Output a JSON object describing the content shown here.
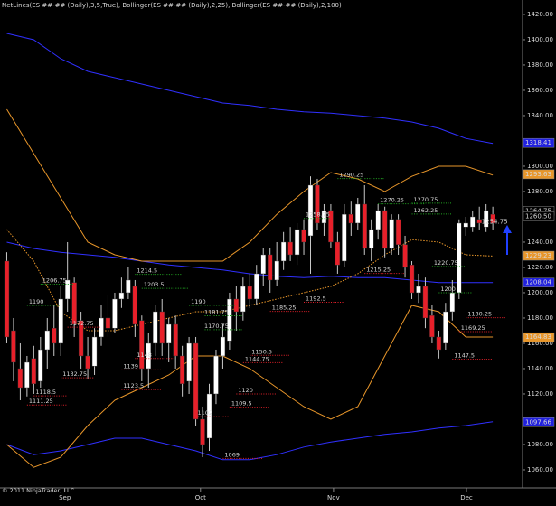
{
  "chart_data": {
    "type": "candlestick",
    "title": "NetLines(ES ##-## (Daily),3,5,True), Bollinger(ES ##-## (Daily),2,25), Bollinger(ES ##-## (Daily),2,100)",
    "footer": "© 2011 NinjaTrader, LLC",
    "up_color": "#ffffff",
    "down_color": "#e8202a",
    "x": [
      0,
      1,
      2,
      3,
      4,
      5,
      6,
      7,
      8,
      9,
      10,
      11,
      12,
      13,
      14,
      15,
      16,
      17,
      18,
      19,
      20,
      21,
      22,
      23,
      24,
      25,
      26,
      27,
      28,
      29,
      30,
      31,
      32,
      33,
      34,
      35,
      36,
      37,
      38,
      39,
      40,
      41,
      42,
      43,
      44,
      45,
      46,
      47,
      48,
      49,
      50,
      51,
      52,
      53,
      54,
      55,
      56,
      57,
      58,
      59,
      60,
      61,
      62,
      63,
      64,
      65,
      66,
      67,
      68,
      69,
      70,
      71,
      72
    ],
    "open": [
      1225,
      1170,
      1140,
      1125,
      1148,
      1130,
      1155,
      1172,
      1160,
      1195,
      1208,
      1178,
      1150,
      1142,
      1165,
      1180,
      1172,
      1195,
      1200,
      1205,
      1178,
      1140,
      1160,
      1185,
      1160,
      1175,
      1150,
      1130,
      1160,
      1100,
      1085,
      1120,
      1150,
      1162,
      1195,
      1185,
      1205,
      1195,
      1215,
      1230,
      1210,
      1225,
      1240,
      1230,
      1250,
      1245,
      1285,
      1255,
      1265,
      1240,
      1225,
      1262,
      1255,
      1270,
      1235,
      1250,
      1265,
      1235,
      1258,
      1238,
      1222,
      1200,
      1205,
      1182,
      1165,
      1160,
      1185,
      1200,
      1252,
      1252,
      1258,
      1252,
      1262
    ],
    "high": [
      1232,
      1180,
      1160,
      1150,
      1158,
      1165,
      1180,
      1190,
      1205,
      1240,
      1212,
      1185,
      1165,
      1172,
      1190,
      1198,
      1200,
      1212,
      1220,
      1210,
      1182,
      1168,
      1190,
      1195,
      1180,
      1182,
      1158,
      1165,
      1165,
      1110,
      1128,
      1155,
      1175,
      1200,
      1205,
      1212,
      1215,
      1222,
      1235,
      1235,
      1240,
      1248,
      1252,
      1255,
      1258,
      1292,
      1290,
      1270,
      1270,
      1248,
      1270,
      1272,
      1275,
      1285,
      1258,
      1270,
      1268,
      1262,
      1262,
      1245,
      1225,
      1215,
      1212,
      1190,
      1170,
      1192,
      1210,
      1258,
      1260,
      1265,
      1268,
      1270,
      1268
    ],
    "low": [
      1160,
      1130,
      1115,
      1118,
      1120,
      1125,
      1140,
      1150,
      1150,
      1185,
      1165,
      1140,
      1132,
      1135,
      1158,
      1165,
      1168,
      1188,
      1195,
      1165,
      1130,
      1125,
      1150,
      1150,
      1145,
      1140,
      1118,
      1120,
      1095,
      1070,
      1075,
      1112,
      1140,
      1155,
      1170,
      1178,
      1188,
      1190,
      1205,
      1200,
      1205,
      1218,
      1225,
      1222,
      1230,
      1215,
      1250,
      1245,
      1235,
      1215,
      1220,
      1245,
      1250,
      1230,
      1225,
      1242,
      1228,
      1230,
      1230,
      1212,
      1195,
      1192,
      1172,
      1160,
      1148,
      1155,
      1178,
      1195,
      1245,
      1248,
      1250,
      1248,
      1250
    ],
    "close": [
      1165,
      1145,
      1125,
      1145,
      1128,
      1155,
      1170,
      1160,
      1195,
      1210,
      1175,
      1150,
      1140,
      1165,
      1180,
      1172,
      1195,
      1200,
      1210,
      1175,
      1140,
      1160,
      1185,
      1160,
      1175,
      1150,
      1128,
      1160,
      1100,
      1080,
      1120,
      1150,
      1165,
      1195,
      1185,
      1205,
      1195,
      1215,
      1230,
      1210,
      1225,
      1240,
      1230,
      1250,
      1240,
      1285,
      1255,
      1265,
      1240,
      1222,
      1262,
      1255,
      1270,
      1235,
      1250,
      1265,
      1235,
      1258,
      1238,
      1220,
      1200,
      1205,
      1180,
      1165,
      1155,
      1185,
      1200,
      1255,
      1255,
      1260,
      1255,
      1265,
      1255
    ],
    "bands": [
      {
        "color": "#3030ff",
        "style": "solid",
        "x": [
          0,
          4,
          8,
          12,
          16,
          20,
          24,
          28,
          32,
          36,
          40,
          44,
          48,
          52,
          56,
          60,
          64,
          68,
          72
        ],
        "values": [
          1405,
          1400,
          1385,
          1375,
          1370,
          1365,
          1360,
          1355,
          1350,
          1348,
          1345,
          1343,
          1342,
          1340,
          1338,
          1335,
          1330,
          1322,
          1318
        ]
      },
      {
        "color": "#3030ff",
        "style": "solid",
        "x": [
          0,
          4,
          8,
          12,
          16,
          20,
          24,
          28,
          32,
          36,
          40,
          44,
          48,
          52,
          56,
          60,
          64,
          68,
          72
        ],
        "values": [
          1240,
          1235,
          1232,
          1230,
          1228,
          1225,
          1222,
          1220,
          1218,
          1215,
          1213,
          1212,
          1213,
          1212,
          1212,
          1210,
          1208,
          1208,
          1208
        ]
      },
      {
        "color": "#3030ff",
        "style": "solid",
        "x": [
          0,
          4,
          8,
          12,
          16,
          20,
          24,
          28,
          32,
          36,
          40,
          44,
          48,
          52,
          56,
          60,
          64,
          68,
          72
        ],
        "values": [
          1080,
          1072,
          1075,
          1080,
          1085,
          1085,
          1080,
          1075,
          1068,
          1068,
          1072,
          1078,
          1082,
          1085,
          1088,
          1090,
          1093,
          1095,
          1098
        ]
      },
      {
        "color": "#e8962a",
        "style": "solid",
        "x": [
          0,
          4,
          8,
          12,
          16,
          20,
          24,
          28,
          32,
          36,
          40,
          44,
          48,
          52,
          56,
          60,
          64,
          68,
          72
        ],
        "values": [
          1345,
          1310,
          1275,
          1240,
          1230,
          1225,
          1225,
          1225,
          1225,
          1240,
          1262,
          1280,
          1295,
          1290,
          1280,
          1292,
          1300,
          1300,
          1293
        ]
      },
      {
        "color": "#e8962a",
        "style": "dotted",
        "x": [
          0,
          4,
          8,
          12,
          16,
          20,
          24,
          28,
          32,
          36,
          40,
          44,
          48,
          52,
          56,
          60,
          64,
          68,
          72
        ],
        "values": [
          1250,
          1225,
          1185,
          1170,
          1170,
          1175,
          1180,
          1185,
          1185,
          1190,
          1195,
          1200,
          1205,
          1215,
          1230,
          1242,
          1240,
          1230,
          1229
        ]
      },
      {
        "color": "#e8962a",
        "style": "solid",
        "x": [
          0,
          4,
          8,
          12,
          16,
          20,
          24,
          28,
          32,
          36,
          40,
          44,
          48,
          52,
          56,
          60,
          64,
          68,
          72
        ],
        "values": [
          1080,
          1062,
          1070,
          1095,
          1115,
          1125,
          1135,
          1150,
          1150,
          1140,
          1125,
          1110,
          1100,
          1110,
          1150,
          1190,
          1185,
          1165,
          1165
        ]
      }
    ],
    "levels": [
      {
        "color": "#22a822",
        "items": [
          {
            "value": 1206.75,
            "x": [
              5,
              10
            ]
          },
          {
            "value": 1190,
            "x": [
              3,
              8
            ]
          },
          {
            "value": 1214.5,
            "x": [
              19,
              26
            ]
          },
          {
            "value": 1203.5,
            "x": [
              20,
              27
            ]
          },
          {
            "value": 1190,
            "x": [
              27,
              34
            ]
          },
          {
            "value": 1181.75,
            "x": [
              29,
              35
            ]
          },
          {
            "value": 1170.75,
            "x": [
              29,
              35
            ]
          },
          {
            "value": 1258.75,
            "x": [
              44,
              48
            ]
          },
          {
            "value": 1290.25,
            "x": [
              49,
              56
            ]
          },
          {
            "value": 1270.25,
            "x": [
              55,
              62
            ]
          },
          {
            "value": 1270.75,
            "x": [
              60,
              66
            ]
          },
          {
            "value": 1262.25,
            "x": [
              60,
              66
            ]
          },
          {
            "value": 1220.75,
            "x": [
              63,
              68
            ]
          },
          {
            "value": 1200,
            "x": [
              64,
              69
            ]
          }
        ]
      },
      {
        "color": "#e8202a",
        "items": [
          {
            "value": 1132.75,
            "x": [
              8,
              13
            ]
          },
          {
            "value": 1118.5,
            "x": [
              4,
              9
            ]
          },
          {
            "value": 1111.25,
            "x": [
              3,
              9
            ]
          },
          {
            "value": 1172.75,
            "x": [
              9,
              14
            ]
          },
          {
            "value": 1123.5,
            "x": [
              17,
              23
            ]
          },
          {
            "value": 1139,
            "x": [
              17,
              23
            ]
          },
          {
            "value": 1148,
            "x": [
              19,
              25
            ]
          },
          {
            "value": 1102,
            "x": [
              28,
              33
            ]
          },
          {
            "value": 1150.5,
            "x": [
              36,
              42
            ]
          },
          {
            "value": 1144.75,
            "x": [
              35,
              41
            ]
          },
          {
            "value": 1120,
            "x": [
              34,
              40
            ]
          },
          {
            "value": 1109.5,
            "x": [
              33,
              39
            ]
          },
          {
            "value": 1069,
            "x": [
              32,
              38
            ]
          },
          {
            "value": 1185.25,
            "x": [
              39,
              45
            ]
          },
          {
            "value": 1192.5,
            "x": [
              44,
              50
            ]
          },
          {
            "value": 1215.25,
            "x": [
              53,
              59
            ]
          },
          {
            "value": 1180.25,
            "x": [
              68,
              74
            ]
          },
          {
            "value": 1169.25,
            "x": [
              67,
              72
            ]
          },
          {
            "value": 1147.5,
            "x": [
              66,
              72
            ]
          }
        ]
      }
    ],
    "annotation": {
      "text": "1254.75",
      "value": 1254.75,
      "x": 71
    },
    "markers": [
      {
        "value": 1318.41,
        "color": "#2020e0"
      },
      {
        "value": 1293.63,
        "color": "#e8962a"
      },
      {
        "value": 1264.75,
        "color": "#000000"
      },
      {
        "value": 1260.5,
        "label": "1260.50",
        "color": "#000000"
      },
      {
        "value": 1229.23,
        "color": "#e8962a"
      },
      {
        "value": 1208.04,
        "color": "#2020e0"
      },
      {
        "value": 1164.83,
        "color": "#e8962a"
      },
      {
        "value": 1097.66,
        "color": "#2020e0"
      }
    ],
    "xlim": [
      -1,
      76
    ],
    "xticks": [
      {
        "value": 8.6,
        "label": "Sep"
      },
      {
        "value": 28.7,
        "label": "Oct"
      },
      {
        "value": 48.4,
        "label": "Nov"
      },
      {
        "value": 68.1,
        "label": "Dec"
      }
    ],
    "ylim": [
      1045.7,
      1431.4
    ],
    "yticks": [
      {
        "value": 1060,
        "label": "1060.00"
      },
      {
        "value": 1080,
        "label": "1080.00"
      },
      {
        "value": 1100,
        "label": "1100.00"
      },
      {
        "value": 1120,
        "label": "1120.00"
      },
      {
        "value": 1140,
        "label": "1140.00"
      },
      {
        "value": 1160,
        "label": "1160.00"
      },
      {
        "value": 1180,
        "label": "1180.00"
      },
      {
        "value": 1200,
        "label": "1200.00"
      },
      {
        "value": 1220,
        "label": "1220.00"
      },
      {
        "value": 1240,
        "label": "1240.00"
      },
      {
        "value": 1260,
        "label": "1260.00"
      },
      {
        "value": 1280,
        "label": "1280.00"
      },
      {
        "value": 1300,
        "label": "1300.00"
      },
      {
        "value": 1320,
        "label": "1320.00"
      },
      {
        "value": 1340,
        "label": "1340.00"
      },
      {
        "value": 1360,
        "label": "1360.00"
      },
      {
        "value": 1380,
        "label": "1380.00"
      },
      {
        "value": 1400,
        "label": "1400.00"
      },
      {
        "value": 1420,
        "label": "1420.00"
      }
    ]
  }
}
